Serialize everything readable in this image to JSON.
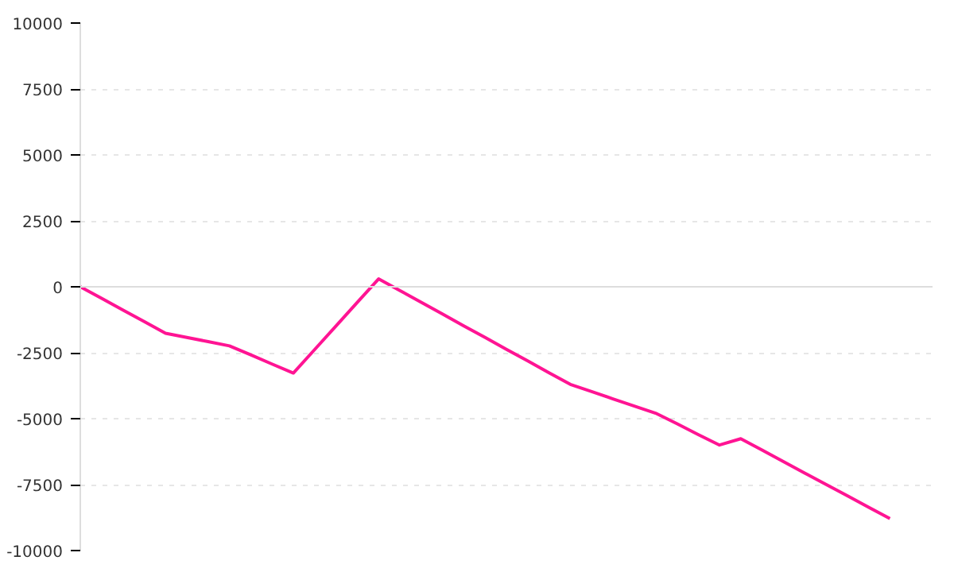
{
  "chart_data": {
    "type": "line",
    "categories": [
      null,
      null,
      null,
      null,
      null,
      null,
      null,
      null,
      null,
      null,
      null,
      null,
      null,
      null,
      null,
      null,
      null,
      null,
      null,
      null,
      null,
      null,
      null,
      null,
      null,
      null,
      null,
      null,
      null,
      null,
      null,
      null,
      null,
      null,
      null,
      null,
      null,
      null,
      null,
      null,
      null
    ],
    "series": [
      {
        "color": "#ff1493",
        "values": [
          0,
          -440,
          -880,
          -1320,
          -1760,
          -1920,
          -2080,
          -2240,
          -2580,
          -2930,
          -3270,
          -2380,
          -1490,
          -590,
          300,
          -140,
          -590,
          -1030,
          -1480,
          -1920,
          -2370,
          -2810,
          -3260,
          -3700,
          -3970,
          -4250,
          -4520,
          -4790,
          -5190,
          -5600,
          -6000,
          -5760,
          -6190,
          -6630,
          -7060,
          -7490,
          -7920,
          -8360,
          -8790,
          null,
          null
        ]
      }
    ],
    "ylim": [
      -10000,
      10000
    ],
    "yticks": [
      -10000,
      -7500,
      -5000,
      -2500,
      0,
      2500,
      5000,
      7500,
      10000
    ],
    "grid": "y",
    "tick_labels": "y",
    "line_style": "solid",
    "marker": "none"
  }
}
